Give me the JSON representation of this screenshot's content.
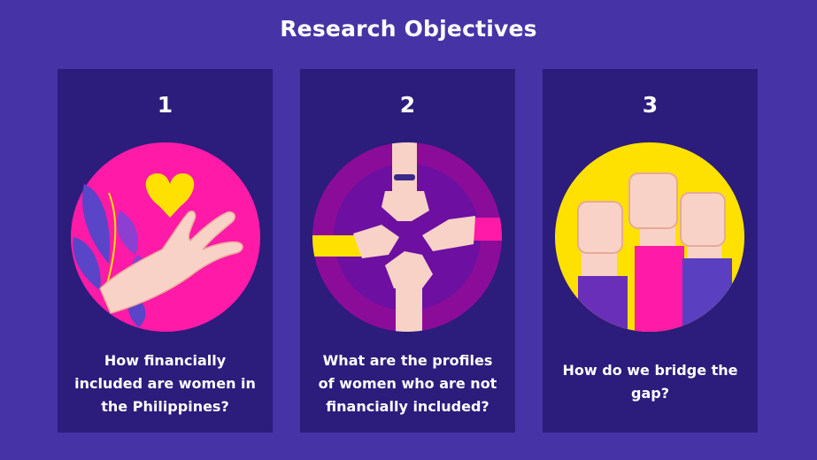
{
  "slide": {
    "title": "Research Objectives",
    "colors": {
      "background": "#4634a6",
      "card": "#2c1c7c",
      "magenta": "#ff1aa8",
      "purple": "#8c0c9a",
      "yellow": "#ffe100",
      "skin": "#f8d2c6"
    }
  },
  "objectives": [
    {
      "number": "1",
      "question": "How financially included are women in the Philippines?",
      "icon": "hand-holding-heart-icon"
    },
    {
      "number": "2",
      "question": "What are the profiles of women who are not financially included?",
      "icon": "joined-hands-icon"
    },
    {
      "number": "3",
      "question": "How do we bridge the gap?",
      "icon": "raised-fists-icon"
    }
  ]
}
